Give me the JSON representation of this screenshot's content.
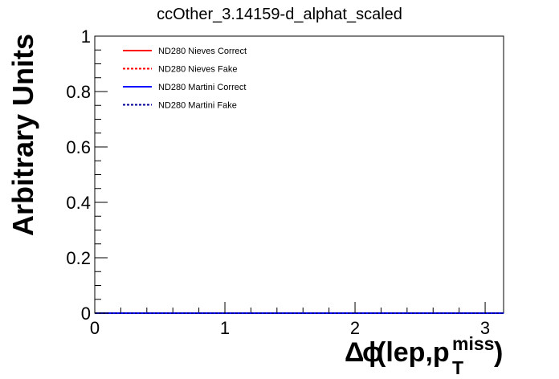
{
  "chart_data": {
    "type": "line",
    "title": "ccOther_3.14159-d_alphat_scaled",
    "xlabel": {
      "delta": "Δ",
      "phi": "ϕ",
      "text": "(lep,p",
      "superscript": "miss",
      "subscript": "T",
      "close": ")"
    },
    "ylabel": "Arbitrary Units",
    "xlim": [
      0,
      3.14159
    ],
    "ylim": [
      0,
      1
    ],
    "x_ticks": [
      0,
      1,
      2,
      3
    ],
    "x_tick_labels": [
      "0",
      "1",
      "2",
      "3"
    ],
    "y_ticks": [
      0,
      0.2,
      0.4,
      0.6,
      0.8,
      1
    ],
    "y_tick_labels": [
      "0",
      "0.2",
      "0.4",
      "0.6",
      "0.8",
      "1"
    ],
    "grid": false,
    "legend_position": "top-left",
    "series": [
      {
        "name": "ND280 Nieves Correct",
        "color": "#ff0000",
        "style": "solid",
        "x": [
          0,
          3.14159
        ],
        "y": [
          0,
          0
        ]
      },
      {
        "name": "ND280 Nieves Fake",
        "color": "#ff0000",
        "style": "dashed",
        "x": [
          0,
          3.14159
        ],
        "y": [
          0,
          0
        ]
      },
      {
        "name": "ND280 Martini Correct",
        "color": "#0000ff",
        "style": "solid",
        "x": [
          0,
          3.14159
        ],
        "y": [
          0,
          0
        ]
      },
      {
        "name": "ND280 Martini Fake",
        "color": "#000099",
        "style": "dashed",
        "x": [
          0,
          3.14159
        ],
        "y": [
          0,
          0
        ]
      }
    ]
  }
}
